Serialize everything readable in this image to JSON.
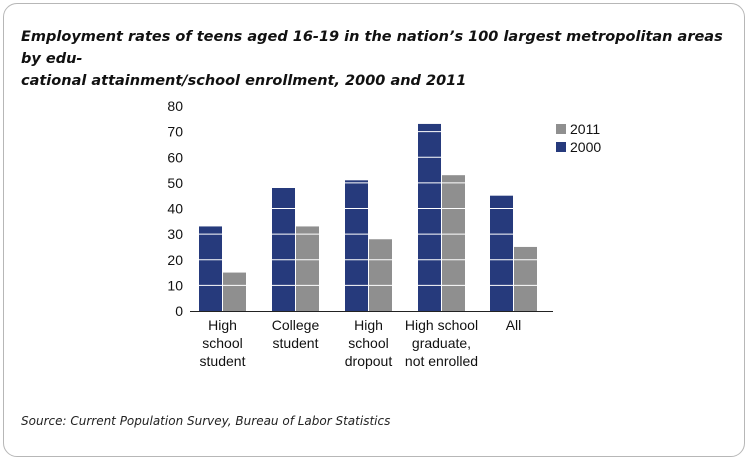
{
  "title": "Employment rates of teens aged 16-19 in the nation’s 100 largest metropolitan areas by edu-cational attainment/school enrollment, 2000 and 2011",
  "title_line1": "Employment rates of teens aged 16-19 in the nation’s 100 largest metropolitan areas by edu-",
  "title_line2": "cational attainment/school enrollment, 2000 and 2011",
  "source": "Source: Current Population Survey, Bureau of Labor Statistics",
  "colors": {
    "s2000": "#263a7c",
    "s2011": "#8f8f8f",
    "gridline": "#ffffff"
  },
  "chart_data": {
    "type": "bar",
    "title": "Employment rates of teens aged 16-19 in the nation’s 100 largest metropolitan areas by educational attainment/school enrollment, 2000 and 2011",
    "categories": [
      [
        "High",
        "school",
        "student"
      ],
      [
        "College",
        "student"
      ],
      [
        "High",
        "school",
        "dropout"
      ],
      [
        "High school",
        "graduate,",
        "not enrolled"
      ],
      [
        "All"
      ]
    ],
    "series": [
      {
        "name": "2000",
        "values": [
          33,
          48,
          51,
          73,
          45
        ]
      },
      {
        "name": "2011",
        "values": [
          15,
          33,
          28,
          53,
          25
        ]
      }
    ],
    "legend": [
      "2011",
      "2000"
    ],
    "legend_position": "top-right",
    "ylim": [
      0,
      80
    ],
    "yticks": [
      0,
      10,
      20,
      30,
      40,
      50,
      60,
      70,
      80
    ],
    "grid": true,
    "xlabel": "",
    "ylabel": ""
  }
}
